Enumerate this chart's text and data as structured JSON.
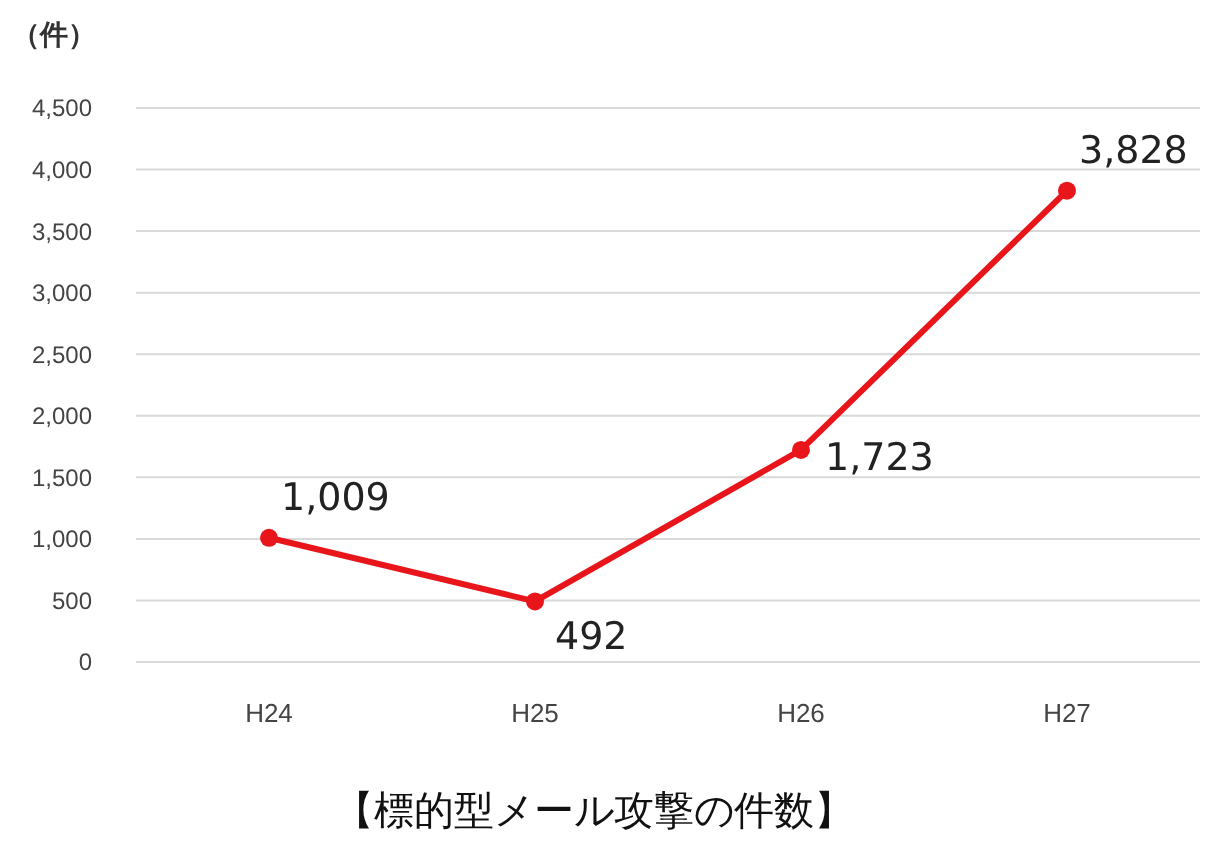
{
  "chart_data": {
    "type": "line",
    "title": "【標的型メール攻撃の件数】",
    "ylabel": "（件）",
    "categories": [
      "H24",
      "H25",
      "H26",
      "H27"
    ],
    "series": [
      {
        "color": "#e8161b",
        "values": [
          1009,
          492,
          1723,
          3828
        ],
        "value_labels": [
          "1,009",
          "492",
          "1,723",
          "3,828"
        ]
      }
    ],
    "ylim": [
      0,
      4500
    ],
    "yticks": [
      0,
      500,
      {
        "value": 1000,
        "label": "1,000"
      },
      {
        "value": 1500,
        "label": "1,500"
      },
      {
        "value": 2000,
        "label": "2,000"
      },
      {
        "value": 2500,
        "label": "2,500"
      },
      {
        "value": 3000,
        "label": "3,000"
      },
      {
        "value": 3500,
        "label": "3,500"
      },
      {
        "value": 4000,
        "label": "4,000"
      },
      {
        "value": 4500,
        "label": "4,500"
      }
    ],
    "grid": "y",
    "marker": "circle",
    "line_style": "solid"
  }
}
